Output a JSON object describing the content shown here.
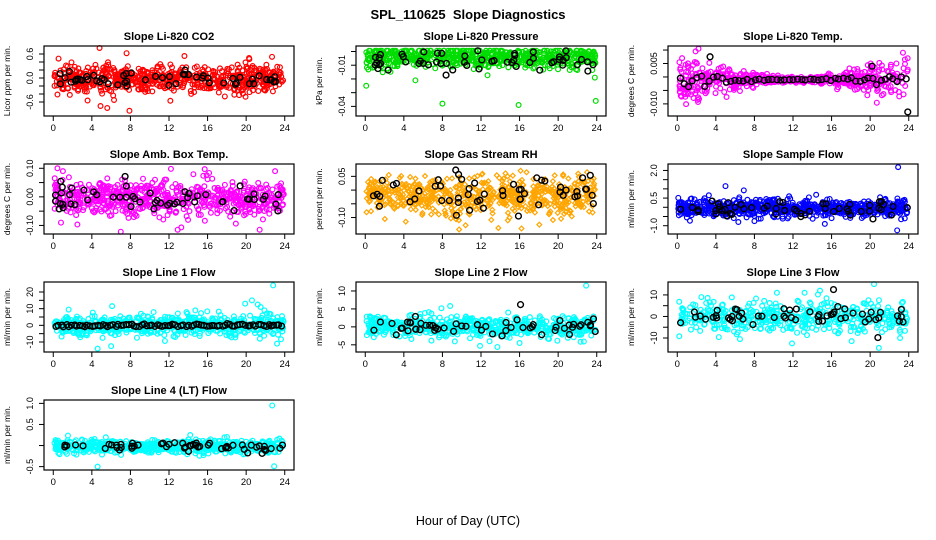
{
  "page": {
    "title": "SPL_110625  Slope Diagnostics",
    "xlabel": "Hour of Day (UTC)"
  },
  "chart_data": {
    "type": "scatter",
    "layout": "grid-3x4",
    "title": "SPL_110625  Slope Diagnostics",
    "xlabel": "Hour of Day (UTC)",
    "x_range": [
      0,
      24
    ],
    "x_ticks": [
      0,
      4,
      8,
      12,
      16,
      20,
      24
    ],
    "grid": "off",
    "legend": "none",
    "series_note": "each panel: dense colored 2-min slope samples + black open circles = hourly means",
    "plots": [
      {
        "title": "Slope Li-820 CO2",
        "ylabel": "Licor ppm per min.",
        "color": "#FF0000",
        "marker": "circle-open",
        "ylim": [
          -0.95,
          0.8
        ],
        "ytick_values": [
          -0.6,
          -0.4,
          -0.2,
          0.0,
          0.2,
          0.4,
          0.6
        ],
        "ytick_labels": [
          "-0.6",
          "",
          "",
          "0.0",
          "",
          "",
          "0.6"
        ],
        "series": [
          {
            "name": "samples",
            "color": "#FF0000",
            "n": 620,
            "mean": -0.02,
            "sd": 0.17,
            "seed": 11
          },
          {
            "name": "hourly-mean",
            "color": "#000000",
            "n": 55,
            "mean": -0.02,
            "sd": 0.1,
            "seed": 12
          }
        ],
        "outliers": [
          [
            4.8,
            0.75
          ],
          [
            13.6,
            0.55
          ],
          [
            7.6,
            0.62
          ],
          [
            5.6,
            -0.75
          ],
          [
            7.9,
            -0.82
          ],
          [
            6.3,
            -0.55
          ],
          [
            20.3,
            0.5
          ],
          [
            4.9,
            -0.7
          ]
        ]
      },
      {
        "title": "Slope Li-820 Pressure",
        "ylabel": "kPa per min.",
        "color": "#00DD00",
        "marker": "circle-open",
        "ylim": [
          -0.047,
          0.004
        ],
        "ytick_values": [
          0.0,
          -0.01,
          -0.02,
          -0.03,
          -0.04
        ],
        "ytick_labels": [
          "",
          "-0.01",
          "",
          "",
          "-0.04"
        ],
        "clamp": [
          -0.045,
          0.0005
        ],
        "series": [
          {
            "name": "samples",
            "color": "#00DD00",
            "n": 620,
            "mean": -0.0045,
            "sd": 0.0038,
            "seed": 21
          },
          {
            "name": "hourly-mean",
            "color": "#000000",
            "n": 55,
            "mean": -0.007,
            "sd": 0.0042,
            "seed": 22
          }
        ],
        "outliers": [
          [
            0.1,
            -0.025
          ],
          [
            8.0,
            -0.038
          ],
          [
            15.9,
            -0.039
          ],
          [
            23.9,
            -0.036
          ],
          [
            5.2,
            -0.021
          ],
          [
            23.8,
            -0.019
          ]
        ]
      },
      {
        "title": "Slope Li-820 Temp.",
        "ylabel": "degrees C per min.",
        "color": "#FF00FF",
        "marker": "circle-open",
        "ylim": [
          -0.0145,
          0.0115
        ],
        "ytick_values": [
          0.01,
          0.005,
          0.0,
          -0.005,
          -0.01
        ],
        "ytick_labels": [
          "",
          "0.005",
          "",
          "",
          "-0.010"
        ],
        "envelope": "hourglass",
        "series": [
          {
            "name": "samples",
            "color": "#FF00FF",
            "n": 620,
            "mean": -0.001,
            "sd": 0.004,
            "sd_min": 0.0004,
            "seed": 31
          },
          {
            "name": "hourly-mean",
            "color": "#000000",
            "n": 55,
            "mean": -0.001,
            "sd": 0.0012,
            "sd_min": 8e-05,
            "seed": 32,
            "spacing": "even"
          }
        ],
        "outliers": [
          [
            1.9,
            0.0095
          ],
          [
            2.2,
            0.0105
          ],
          [
            23.4,
            0.009
          ],
          [
            0.5,
            0.007
          ],
          [
            23.6,
            0.0065
          ],
          [
            2.1,
            -0.0085
          ]
        ],
        "black_outliers": [
          [
            23.9,
            -0.013
          ],
          [
            3.4,
            0.0075
          ],
          [
            20.2,
            0.004
          ]
        ]
      },
      {
        "title": "Slope Amb. Box Temp.",
        "ylabel": "degrees C per min.",
        "color": "#FF00FF",
        "marker": "circle-open",
        "ylim": [
          -0.13,
          0.115
        ],
        "ytick_values": [
          -0.1,
          -0.05,
          0.0,
          0.05,
          0.1
        ],
        "ytick_labels": [
          "-0.10",
          "",
          "0.00",
          "",
          "0.10"
        ],
        "series": [
          {
            "name": "samples",
            "color": "#FF00FF",
            "n": 620,
            "mean": -0.005,
            "sd": 0.032,
            "seed": 41
          },
          {
            "name": "hourly-mean",
            "color": "#000000",
            "n": 55,
            "mean": -0.01,
            "sd": 0.025,
            "seed": 42
          }
        ],
        "outliers": [
          [
            12.2,
            0.098
          ],
          [
            15.7,
            0.097
          ],
          [
            1.0,
            0.09
          ],
          [
            7.0,
            -0.122
          ],
          [
            12.9,
            -0.115
          ],
          [
            21.4,
            -0.115
          ],
          [
            23.0,
            0.09
          ],
          [
            0.8,
            -0.09
          ]
        ]
      },
      {
        "title": "Slope Gas Stream RH",
        "ylabel": "percent per min.",
        "color": "#FFA500",
        "marker": "diamond-open",
        "ylim": [
          -0.16,
          0.095
        ],
        "ytick_values": [
          -0.1,
          -0.05,
          0.0,
          0.05
        ],
        "ytick_labels": [
          "-0.10",
          "",
          "",
          "0.05"
        ],
        "clamp": [
          -0.15,
          0.085
        ],
        "series": [
          {
            "name": "samples",
            "color": "#FFA500",
            "n": 620,
            "mean": -0.02,
            "sd": 0.035,
            "seed": 51
          },
          {
            "name": "hourly-mean",
            "color": "#000000",
            "n": 55,
            "mean": -0.015,
            "sd": 0.035,
            "seed": 52
          }
        ],
        "outliers": [
          [
            13.8,
            -0.138
          ],
          [
            10.4,
            -0.128
          ],
          [
            4.2,
            -0.115
          ],
          [
            16.2,
            -0.14
          ]
        ]
      },
      {
        "title": "Slope Sample Flow",
        "ylabel": "ml/min per min.",
        "color": "#0000FF",
        "marker": "circle-open",
        "ylim": [
          -1.45,
          2.35
        ],
        "ytick_values": [
          -1.0,
          -0.5,
          0.0,
          0.5,
          1.0,
          1.5,
          2.0
        ],
        "ytick_labels": [
          "-1.0",
          "",
          "",
          "0.5",
          "",
          "",
          "2.0"
        ],
        "series": [
          {
            "name": "samples",
            "color": "#0000FF",
            "n": 700,
            "mean": -0.05,
            "sd": 0.25,
            "seed": 61
          },
          {
            "name": "hourly-mean",
            "color": "#000000",
            "n": 55,
            "mean": -0.1,
            "sd": 0.22,
            "seed": 62
          }
        ],
        "outliers": [
          [
            5.0,
            1.15
          ],
          [
            6.9,
            0.92
          ],
          [
            22.9,
            2.18
          ],
          [
            22.8,
            -1.25
          ],
          [
            15.3,
            -0.9
          ],
          [
            8.0,
            -0.75
          ]
        ]
      },
      {
        "title": "Slope Line 1 Flow",
        "ylabel": "ml/min per min.",
        "color": "#00FFFF",
        "marker": "circle-open",
        "ylim": [
          -16,
          26
        ],
        "ytick_values": [
          -10,
          -5,
          0,
          5,
          10,
          15,
          20
        ],
        "ytick_labels": [
          "-10",
          "",
          "0",
          "",
          "10",
          "",
          "20"
        ],
        "series": [
          {
            "name": "samples",
            "color": "#00FFFF",
            "n": 600,
            "mean": 0,
            "sd": 3.0,
            "seed": 71
          },
          {
            "name": "hourly-mean",
            "color": "#000000",
            "n": 88,
            "mean": 0,
            "sd": 0.45,
            "seed": 72,
            "spacing": "even"
          }
        ],
        "outliers": [
          [
            22.8,
            24
          ],
          [
            20.6,
            15
          ],
          [
            21.2,
            12.5
          ],
          [
            19.9,
            13
          ],
          [
            6.1,
            11.5
          ],
          [
            4.6,
            -14
          ],
          [
            6.0,
            -12.5
          ],
          [
            23.2,
            -11
          ],
          [
            21.9,
            9
          ],
          [
            22.4,
            7
          ],
          [
            21.5,
            11
          ]
        ]
      },
      {
        "title": "Slope Line 2 Flow",
        "ylabel": "ml/min per min.",
        "color": "#00FFFF",
        "marker": "circle-open",
        "ylim": [
          -7,
          12.5
        ],
        "ytick_values": [
          -5,
          0,
          5,
          10
        ],
        "ytick_labels": [
          "-5",
          "0",
          "5",
          "10"
        ],
        "series": [
          {
            "name": "samples",
            "color": "#00FFFF",
            "n": 600,
            "mean": 0,
            "sd": 1.5,
            "seed": 81
          },
          {
            "name": "hourly-mean",
            "color": "#000000",
            "n": 55,
            "mean": 0,
            "sd": 1.2,
            "seed": 82
          }
        ],
        "outliers": [
          [
            22.9,
            11.5
          ],
          [
            8.8,
            5.8
          ],
          [
            7.9,
            5.2
          ],
          [
            11.9,
            -5.3
          ],
          [
            13.7,
            -5.6
          ],
          [
            16.0,
            -4.5
          ]
        ],
        "black_outliers": [
          [
            16.1,
            6.2
          ],
          [
            5.2,
            2.9
          ]
        ]
      },
      {
        "title": "Slope Line 3 Flow",
        "ylabel": "ml/min per min.",
        "color": "#00FFFF",
        "marker": "circle-open",
        "ylim": [
          -16.5,
          16
        ],
        "ytick_values": [
          -10,
          -5,
          0,
          5,
          10
        ],
        "ytick_labels": [
          "-10",
          "",
          "0",
          "",
          "10"
        ],
        "series": [
          {
            "name": "samples",
            "color": "#00FFFF",
            "n": 450,
            "mean": 0,
            "sd": 3.8,
            "seed": 91
          },
          {
            "name": "hourly-mean",
            "color": "#000000",
            "n": 55,
            "mean": 0,
            "sd": 2.2,
            "seed": 92
          }
        ],
        "outliers": [
          [
            20.4,
            15
          ],
          [
            14.8,
            12
          ],
          [
            13.2,
            11
          ],
          [
            11.9,
            -12.5
          ],
          [
            20.9,
            -14.6
          ],
          [
            23.1,
            -10
          ],
          [
            2.5,
            9
          ],
          [
            6.5,
            -10.5
          ]
        ],
        "black_outliers": [
          [
            16.2,
            12.5
          ],
          [
            20.8,
            -9.8
          ]
        ]
      },
      {
        "title": "Slope Line 4 (LT) Flow",
        "ylabel": "ml/min per min.",
        "color": "#00FFFF",
        "marker": "circle-open",
        "ylim": [
          -0.58,
          1.08
        ],
        "ytick_values": [
          -0.5,
          0.0,
          0.5,
          1.0
        ],
        "ytick_labels": [
          "-0.5",
          "",
          "0.5",
          "1.0"
        ],
        "series": [
          {
            "name": "samples",
            "color": "#00FFFF",
            "n": 620,
            "mean": -0.02,
            "sd": 0.08,
            "seed": 101
          },
          {
            "name": "hourly-mean",
            "color": "#000000",
            "n": 55,
            "mean": -0.02,
            "sd": 0.055,
            "seed": 102
          }
        ],
        "outliers": [
          [
            22.7,
            0.95
          ],
          [
            4.6,
            -0.5
          ],
          [
            22.9,
            -0.49
          ],
          [
            14.2,
            0.25
          ]
        ]
      }
    ]
  }
}
